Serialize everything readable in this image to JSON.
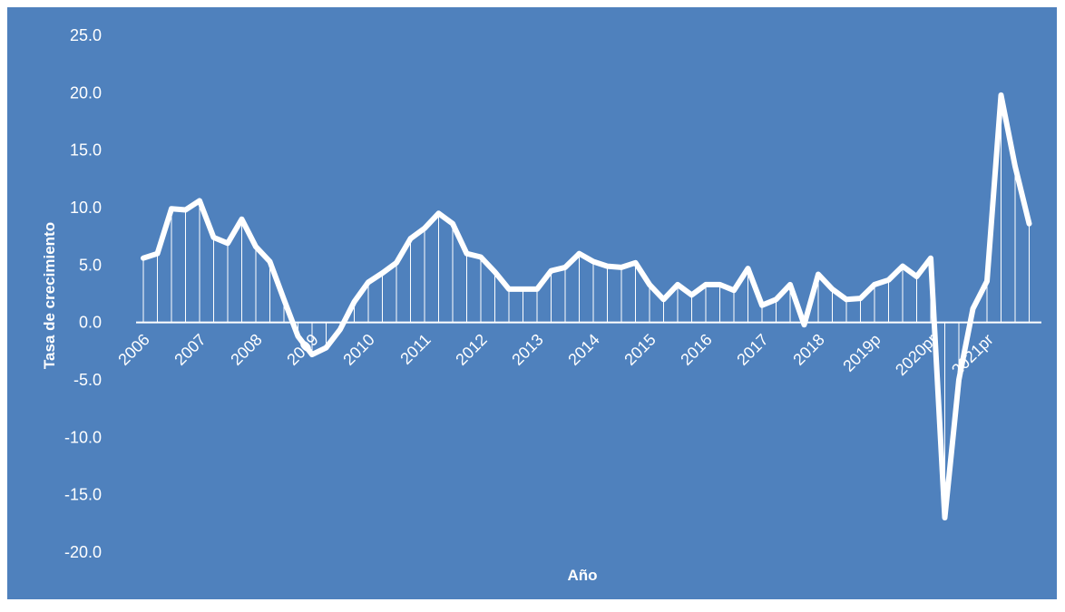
{
  "chart_data": {
    "type": "line",
    "title": "",
    "xlabel": "Año",
    "ylabel": "Tasa de crecimiento",
    "ylim": [
      -20,
      25
    ],
    "yticks": [
      "25.0",
      "20.0",
      "15.0",
      "10.0",
      "5.0",
      "0.0",
      "-5.0",
      "-10.0",
      "-15.0",
      "-20.0"
    ],
    "year_labels": [
      "2006",
      "2007",
      "2008",
      "2009",
      "2010",
      "2011",
      "2012",
      "2013",
      "2014",
      "2015",
      "2016",
      "2017",
      "2018",
      "2019p",
      "2020pr",
      "2021pr"
    ],
    "points_per_year": 4,
    "grid": false,
    "drop_lines": true,
    "line_color": "#ffffff",
    "background_color": "#4f81bd",
    "series": [
      {
        "values": [
          5.6,
          6.0,
          9.9,
          9.8,
          10.6,
          7.4,
          6.9,
          9.0,
          6.6,
          5.3,
          2.0,
          -1.2,
          -2.8,
          -2.2,
          -0.6,
          1.8,
          3.5,
          4.3,
          5.2,
          7.3,
          8.2,
          9.5,
          8.6,
          6.0,
          5.7,
          4.4,
          2.9,
          2.9,
          2.9,
          4.5,
          4.8,
          6.0,
          5.3,
          4.9,
          4.8,
          5.2,
          3.3,
          2.0,
          3.3,
          2.4,
          3.3,
          3.3,
          2.8,
          4.7,
          1.5,
          2.0,
          3.3,
          -0.2,
          4.2,
          2.9,
          2.0,
          2.1,
          3.3,
          3.7,
          4.9,
          4.0,
          5.6,
          -17.0,
          -5.0,
          1.2,
          3.6,
          19.8,
          13.6,
          8.6
        ]
      }
    ]
  }
}
